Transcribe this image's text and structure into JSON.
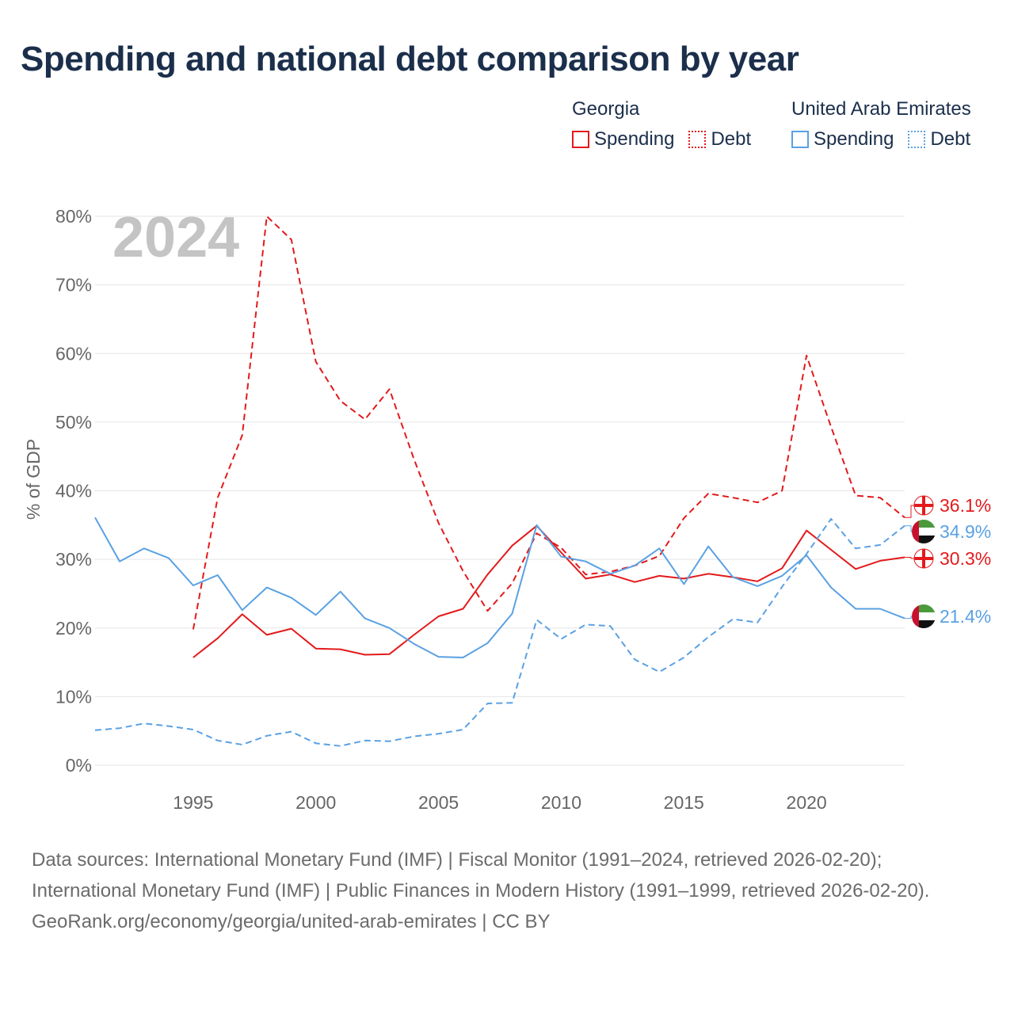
{
  "colors": {
    "georgia": "#e31a1c",
    "uae": "#5aa1e3",
    "grid": "#e5e5e5",
    "axis_text": "#666666",
    "year_watermark": "#c4c4c4"
  },
  "legend": {
    "groups": [
      {
        "country": "Georgia",
        "items": [
          {
            "label": "Spending",
            "style": "solid",
            "color": "#e31a1c"
          },
          {
            "label": "Debt",
            "style": "dotted",
            "color": "#e31a1c"
          }
        ]
      },
      {
        "country": "United Arab Emirates",
        "items": [
          {
            "label": "Spending",
            "style": "solid",
            "color": "#5aa1e3"
          },
          {
            "label": "Debt",
            "style": "dotted",
            "color": "#5aa1e3"
          }
        ]
      }
    ]
  },
  "footer": {
    "sources": "Data sources: International Monetary Fund (IMF) | Fiscal Monitor (1991–2024, retrieved 2026-02-20); International Monetary Fund (IMF) | Public Finances in Modern History (1991–1999, retrieved 2026-02-20).",
    "credit": "GeoRank.org/economy/georgia/united-arab-emirates | CC BY"
  },
  "chart_data": {
    "type": "line",
    "title": "Spending and national debt comparison by year",
    "year_label": "2024",
    "ylabel": "% of GDP",
    "xlabel": "",
    "xlim": [
      1991,
      2024
    ],
    "ylim": [
      0,
      80
    ],
    "yticks": [
      0,
      10,
      20,
      30,
      40,
      50,
      60,
      70,
      80
    ],
    "ytick_labels": [
      "0%",
      "10%",
      "20%",
      "30%",
      "40%",
      "50%",
      "60%",
      "70%",
      "80%"
    ],
    "xticks": [
      1995,
      2000,
      2005,
      2010,
      2015,
      2020
    ],
    "xtick_labels": [
      "1995",
      "2000",
      "2005",
      "2010",
      "2015",
      "2020"
    ],
    "grid": true,
    "series": [
      {
        "name": "Georgia Spending",
        "country": "Georgia",
        "metric": "Spending",
        "style": "solid",
        "color": "#e31a1c",
        "x": [
          1995,
          1996,
          1997,
          1998,
          1999,
          2000,
          2001,
          2002,
          2003,
          2004,
          2005,
          2006,
          2007,
          2008,
          2009,
          2010,
          2011,
          2012,
          2013,
          2014,
          2015,
          2016,
          2017,
          2018,
          2019,
          2020,
          2021,
          2022,
          2023,
          2024
        ],
        "values": [
          15.7,
          18.5,
          22.0,
          19.0,
          19.9,
          17.0,
          16.9,
          16.1,
          16.2,
          19.0,
          21.7,
          22.8,
          27.8,
          32.0,
          34.9,
          31.0,
          27.2,
          27.8,
          26.7,
          27.6,
          27.2,
          27.9,
          27.4,
          26.8,
          28.7,
          34.2,
          31.4,
          28.6,
          29.8,
          30.3
        ],
        "end_label": "30.3%"
      },
      {
        "name": "Georgia Debt",
        "country": "Georgia",
        "metric": "Debt",
        "style": "dashed",
        "color": "#e31a1c",
        "x": [
          1995,
          1996,
          1997,
          1998,
          1999,
          2000,
          2001,
          2002,
          2003,
          2004,
          2005,
          2006,
          2007,
          2008,
          2009,
          2010,
          2011,
          2012,
          2013,
          2014,
          2015,
          2016,
          2017,
          2018,
          2019,
          2020,
          2021,
          2022,
          2023,
          2024
        ],
        "values": [
          19.8,
          39.0,
          48.1,
          80.0,
          76.6,
          58.8,
          53.1,
          50.4,
          54.8,
          44.6,
          35.3,
          28.3,
          22.5,
          26.5,
          33.8,
          31.7,
          27.8,
          28.2,
          29.1,
          30.5,
          36.0,
          39.6,
          39.0,
          38.3,
          40.0,
          59.7,
          49.3,
          39.3,
          39.0,
          36.1
        ],
        "end_label": "36.1%"
      },
      {
        "name": "United Arab Emirates Spending",
        "country": "United Arab Emirates",
        "metric": "Spending",
        "style": "solid",
        "color": "#5aa1e3",
        "x": [
          1991,
          1992,
          1993,
          1994,
          1995,
          1996,
          1997,
          1998,
          1999,
          2000,
          2001,
          2002,
          2003,
          2004,
          2005,
          2006,
          2007,
          2008,
          2009,
          2010,
          2011,
          2012,
          2013,
          2014,
          2015,
          2016,
          2017,
          2018,
          2019,
          2020,
          2021,
          2022,
          2023,
          2024
        ],
        "values": [
          36.1,
          29.7,
          31.6,
          30.2,
          26.2,
          27.7,
          22.6,
          25.9,
          24.4,
          21.9,
          25.3,
          21.4,
          20.0,
          17.7,
          15.8,
          15.7,
          17.8,
          22.1,
          35.0,
          30.4,
          29.7,
          27.9,
          29.1,
          31.6,
          26.4,
          31.9,
          27.4,
          26.1,
          27.6,
          30.6,
          25.9,
          22.8,
          22.8,
          21.4
        ],
        "end_label": "21.4%"
      },
      {
        "name": "United Arab Emirates Debt",
        "country": "United Arab Emirates",
        "metric": "Debt",
        "style": "dashed",
        "color": "#5aa1e3",
        "x": [
          1991,
          1992,
          1993,
          1994,
          1995,
          1996,
          1997,
          1998,
          1999,
          2000,
          2001,
          2002,
          2003,
          2004,
          2005,
          2006,
          2007,
          2008,
          2009,
          2010,
          2011,
          2012,
          2013,
          2014,
          2015,
          2016,
          2017,
          2018,
          2019,
          2020,
          2021,
          2022,
          2023,
          2024
        ],
        "values": [
          5.1,
          5.4,
          6.1,
          5.7,
          5.2,
          3.6,
          3.0,
          4.3,
          4.9,
          3.2,
          2.8,
          3.6,
          3.5,
          4.2,
          4.6,
          5.2,
          9.0,
          9.1,
          21.2,
          18.4,
          20.5,
          20.3,
          15.4,
          13.6,
          15.7,
          18.7,
          21.3,
          20.8,
          26.0,
          30.8,
          35.9,
          31.6,
          32.1,
          34.9
        ],
        "end_label": "34.9%"
      }
    ]
  }
}
